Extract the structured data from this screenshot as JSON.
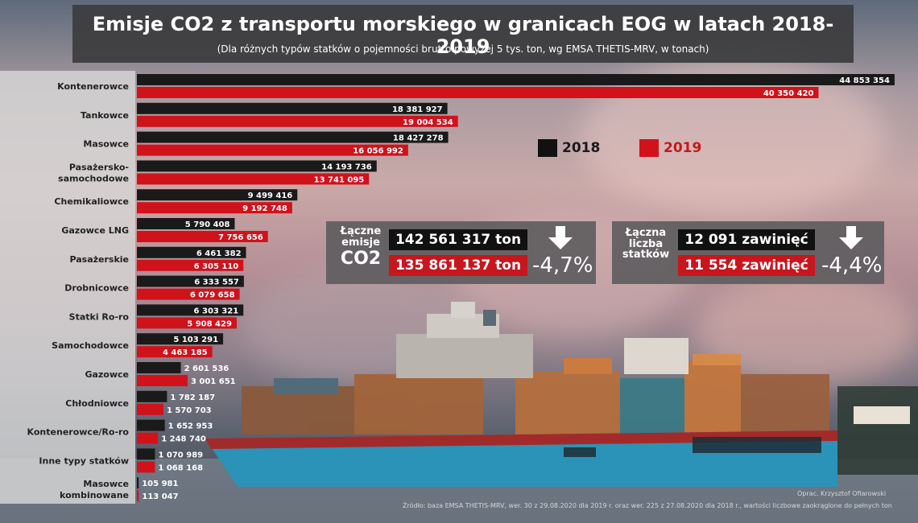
{
  "title": "Emisje CO2 z transportu morskiego w granicach EOG w latach 2018-2019",
  "subtitle": "(Dla różnych typów statków o pojemności brutto powyżej 5 tys. ton, wg EMSA THETIS-MRV, w tonach)",
  "legend": [
    {
      "label": "2018",
      "color": "#111111"
    },
    {
      "label": "2019",
      "color": "#d0121b"
    }
  ],
  "chart_data": {
    "type": "bar",
    "orientation": "horizontal",
    "categories": [
      "Kontenerowce",
      "Tankowce",
      "Masowce",
      "Pasażersko-samochodowe",
      "Chemikaliowce",
      "Gazowce LNG",
      "Pasażerskie",
      "Drobnicowce",
      "Statki Ro-ro",
      "Samochodowce",
      "Gazowce",
      "Chłodniowce",
      "Kontenerowce/Ro-ro",
      "Inne typy statków",
      "Masowce kombinowane"
    ],
    "category_lines": [
      [
        "Kontenerowce"
      ],
      [
        "Tankowce"
      ],
      [
        "Masowce"
      ],
      [
        "Pasażersko-",
        "samochodowe"
      ],
      [
        "Chemikaliowce"
      ],
      [
        "Gazowce LNG"
      ],
      [
        "Pasażerskie"
      ],
      [
        "Drobnicowce"
      ],
      [
        "Statki Ro-ro"
      ],
      [
        "Samochodowce"
      ],
      [
        "Gazowce"
      ],
      [
        "Chłodniowce"
      ],
      [
        "Kontenerowce/Ro-ro"
      ],
      [
        "Inne typy statków"
      ],
      [
        "Masowce",
        "kombinowane"
      ]
    ],
    "series": [
      {
        "name": "2018",
        "color": "#1a1a1a",
        "values": [
          44853354,
          18381927,
          18427278,
          14193736,
          9499416,
          5790408,
          6461382,
          6333557,
          6303321,
          5103291,
          2601536,
          1782187,
          1652953,
          1070989,
          105981
        ]
      },
      {
        "name": "2019",
        "color": "#d0121b",
        "values": [
          40350420,
          19004534,
          16056992,
          13741095,
          9192748,
          7756656,
          6305110,
          6079658,
          5908429,
          4463185,
          3001651,
          1570703,
          1248740,
          1068168,
          113047
        ]
      }
    ],
    "value_labels": {
      "2018": [
        "44 853 354",
        "18 381 927",
        "18 427 278",
        "14 193 736",
        "9 499 416",
        "5 790 408",
        "6 461 382",
        "6 333 557",
        "6 303 321",
        "5 103 291",
        "2 601 536",
        "1 782 187",
        "1 652 953",
        "1 070 989",
        "105 981"
      ],
      "2019": [
        "40 350 420",
        "19 004 534",
        "16 056 992",
        "13 741 095",
        "9 192 748",
        "7 756 656",
        "6 305 110",
        "6 079 658",
        "5 908 429",
        "4 463 185",
        "3 001 651",
        "1 570 703",
        "1 248 740",
        "1 068 168",
        "113 047"
      ]
    },
    "xlim": [
      0,
      45000000
    ],
    "grid": false,
    "legend_position": "top-right"
  },
  "summary_emissions": {
    "label_lines": [
      "Łączne",
      "emisje",
      "CO2"
    ],
    "value_2018": "142 561 317 ton",
    "value_2019": "135 861 137 ton",
    "change": "-4,7%"
  },
  "summary_ships": {
    "label_lines": [
      "Łączna",
      "liczba",
      "statków"
    ],
    "value_2018": "12 091 zawinięć",
    "value_2019": "11 554 zawinięć",
    "change": "-4,4%"
  },
  "credit": "Oprac. Krzysztof Ofiarowski",
  "source": "Źródło: baza EMSA THETIS-MRV, wer. 30 z 29.08.2020 dla 2019 r. oraz wer. 225 z 27.08.2020 dla 2018 r., wartości liczbowe zaokrąglone do pełnych ton"
}
